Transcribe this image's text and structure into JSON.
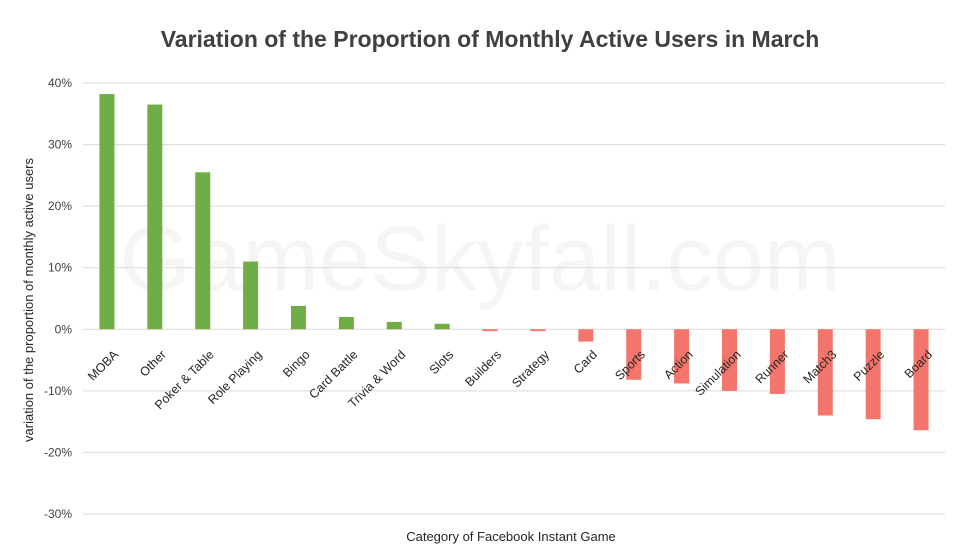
{
  "chart_data": {
    "type": "bar",
    "title": "Variation of the Proportion of Monthly Active Users in March",
    "xlabel": "Category of Facebook Instant Game",
    "ylabel": "variation of the proportion of monthly active users",
    "ylim": [
      -30,
      40
    ],
    "yticks": [
      40,
      30,
      20,
      10,
      0,
      -10,
      -20,
      -30
    ],
    "ytick_labels": [
      "40%",
      "30%",
      "20%",
      "10%",
      "0%",
      "-10%",
      "-20%",
      "-30%"
    ],
    "grid": true,
    "categories": [
      "MOBA",
      "Other",
      "Poker & Table",
      "Role Playing",
      "Bingo",
      "Card Battle",
      "Trivia & Word",
      "Slots",
      "Builders",
      "Strategy",
      "Card",
      "Sports",
      "Action",
      "Simulation",
      "Runner",
      "Match3",
      "Puzzle",
      "Board"
    ],
    "values": [
      38.2,
      36.5,
      25.5,
      11.0,
      3.8,
      2.0,
      1.2,
      0.9,
      -0.3,
      -0.3,
      -2.0,
      -8.2,
      -8.8,
      -10.0,
      -10.5,
      -14.0,
      -14.6,
      -16.4
    ],
    "colors": {
      "positive": "#70ad47",
      "negative": "#f4756b",
      "grid": "#d9d9d9",
      "text": "#404040"
    }
  },
  "watermark": "GameSkyfall.com"
}
